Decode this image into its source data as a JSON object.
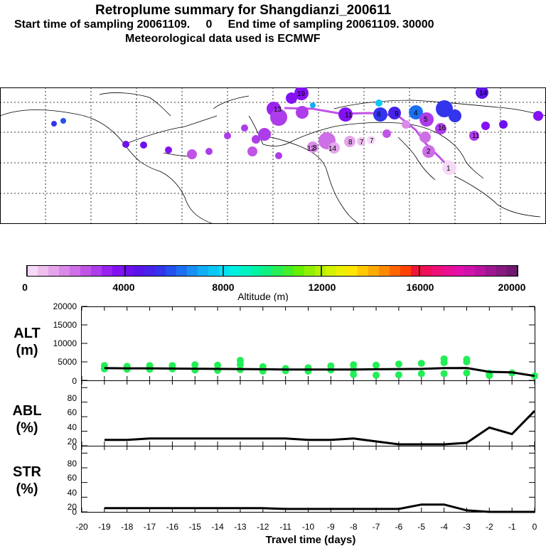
{
  "title": "Retroplume summary for Shangdianzi_200611",
  "subtitle_line1": "Start time of sampling 20061109.     0     End time of sampling 20061109. 30000",
  "subtitle_line2": "Meteorological data used is ECMWF",
  "map": {
    "background": "#ffffff",
    "labels": [
      "1",
      "1",
      "2",
      "2",
      "3",
      "3",
      "4",
      "4",
      "5",
      "5",
      "6",
      "6",
      "7",
      "7",
      "8",
      "8",
      "9",
      "9",
      "10",
      "10",
      "11",
      "11",
      "12",
      "12",
      "13",
      "13",
      "14",
      "14",
      "15",
      "15",
      "16",
      "16",
      "17",
      "17",
      "18",
      "18",
      "19",
      "19",
      "20",
      "20"
    ]
  },
  "colorbar": {
    "label": "Altitude (m)",
    "ticks": [
      "0",
      "4000",
      "8000",
      "12000",
      "16000",
      "20000"
    ],
    "colors": [
      "#f6d9f6",
      "#eebfef",
      "#e5a5ec",
      "#d98ae8",
      "#cd6fe6",
      "#c054e5",
      "#ad3cea",
      "#9a22ef",
      "#8311f2",
      "#6e10ee",
      "#5a14ea",
      "#4722ea",
      "#3334ec",
      "#2450ee",
      "#1c70f0",
      "#1890f3",
      "#10aef5",
      "#0ac8f5",
      "#05e0f2",
      "#00f0e0",
      "#00f2c2",
      "#00f2a3",
      "#10ef7f",
      "#28ee55",
      "#44ee2a",
      "#66f000",
      "#90f000",
      "#b4f200",
      "#d2f200",
      "#ecf000",
      "#ffe600",
      "#ffc800",
      "#ffaa00",
      "#ff8a00",
      "#ff6600",
      "#ff4200",
      "#f0143a",
      "#ee0e5a",
      "#ee0e7a",
      "#ea0e94",
      "#e210a8",
      "#d012ac",
      "#b8139f",
      "#9d168f",
      "#85197f",
      "#6e186f"
    ]
  },
  "panels": {
    "alt_label": [
      "ALT",
      "(m)"
    ],
    "abl_label": [
      "ABL",
      "(%)"
    ],
    "str_label": [
      "STR",
      "(%)"
    ],
    "alt_ticks": [
      "20000",
      "15000",
      "10000",
      "5000",
      "0"
    ],
    "pct_ticks": [
      "80",
      "60",
      "40",
      "20",
      "0"
    ],
    "x_ticks": [
      "-20",
      "-19",
      "-18",
      "-17",
      "-16",
      "-15",
      "-14",
      "-13",
      "-12",
      "-11",
      "-10",
      "-9",
      "-8",
      "-7",
      "-6",
      "-5",
      "-4",
      "-3",
      "-2",
      "-1",
      "0"
    ],
    "xlabel": "Travel time (days)",
    "point_color": "#22ee55"
  },
  "chart_data": [
    {
      "type": "line",
      "title": "ALT (m)",
      "xlabel": "Travel time (days)",
      "ylabel": "ALT (m)",
      "xlim": [
        -20,
        0
      ],
      "ylim": [
        0,
        20000
      ],
      "x": [
        -19,
        -18,
        -17,
        -16,
        -15,
        -14,
        -13,
        -12,
        -11,
        -10,
        -9,
        -8,
        -7,
        -6,
        -5,
        -4,
        -3,
        -2,
        -1,
        0
      ],
      "series": [
        {
          "name": "median altitude",
          "values": [
            3300,
            3250,
            3250,
            3200,
            3150,
            3100,
            3050,
            3000,
            2950,
            2950,
            2950,
            2950,
            3000,
            3050,
            3100,
            3300,
            3350,
            2300,
            2150,
            1200
          ]
        }
      ],
      "scatter": {
        "name": "cluster altitudes",
        "x": [
          -19,
          -19,
          -18,
          -18,
          -17,
          -17,
          -16,
          -16,
          -15,
          -15,
          -14,
          -14,
          -13,
          -13,
          -13,
          -12,
          -12,
          -11,
          -11,
          -10,
          -10,
          -9,
          -9,
          -8,
          -8,
          -8,
          -7,
          -7,
          -6,
          -6,
          -5,
          -5,
          -4,
          -4,
          -4,
          -3,
          -3,
          -3,
          -2,
          -2,
          -1,
          0
        ],
        "y": [
          4000,
          3100,
          3800,
          3000,
          4000,
          3000,
          4000,
          3100,
          4200,
          2800,
          4100,
          2700,
          4300,
          2900,
          5400,
          3700,
          2500,
          3200,
          2600,
          3400,
          2500,
          3900,
          2800,
          4200,
          3000,
          1600,
          4100,
          1400,
          4400,
          1500,
          4600,
          1800,
          4800,
          1800,
          5800,
          5700,
          2000,
          5000,
          1900,
          1300,
          2000,
          1200
        ]
      }
    },
    {
      "type": "line",
      "title": "ABL (%)",
      "xlabel": "Travel time (days)",
      "ylabel": "ABL (%)",
      "xlim": [
        -20,
        0
      ],
      "ylim": [
        0,
        90
      ],
      "x": [
        -19,
        -18,
        -17,
        -16,
        -15,
        -14,
        -13,
        -12,
        -11,
        -10,
        -9,
        -8,
        -7,
        -6,
        -5,
        -4,
        -3,
        -2,
        -1,
        0
      ],
      "series": [
        {
          "name": "ABL fraction",
          "values": [
            8,
            8,
            10,
            10,
            10,
            10,
            10,
            10,
            10,
            8,
            8,
            10,
            6,
            2,
            2,
            2,
            4,
            25,
            16,
            48
          ]
        }
      ]
    },
    {
      "type": "line",
      "title": "STR (%)",
      "xlabel": "Travel time (days)",
      "ylabel": "STR (%)",
      "xlim": [
        -20,
        0
      ],
      "ylim": [
        0,
        90
      ],
      "x": [
        -19,
        -18,
        -17,
        -16,
        -15,
        -14,
        -13,
        -12,
        -11,
        -10,
        -9,
        -8,
        -7,
        -6,
        -5,
        -4,
        -3,
        -2,
        -1,
        0
      ],
      "series": [
        {
          "name": "stratosphere fraction",
          "values": [
            5,
            5,
            5,
            5,
            5,
            5,
            5,
            5,
            4,
            4,
            4,
            4,
            4,
            4,
            10,
            10,
            2,
            0,
            0,
            0
          ]
        }
      ]
    }
  ]
}
